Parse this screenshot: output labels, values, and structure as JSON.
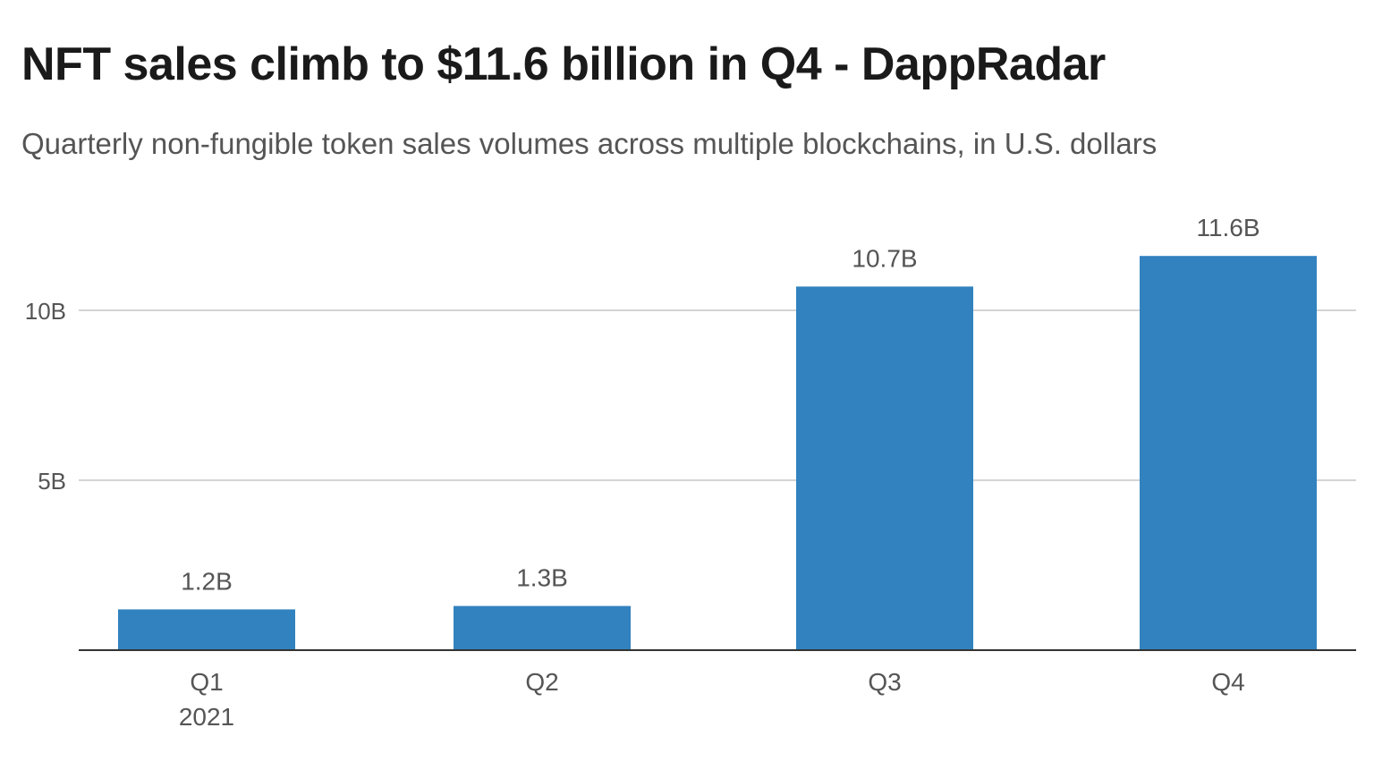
{
  "chart_data": {
    "type": "bar",
    "title": "NFT sales climb to $11.6 billion in Q4 - DappRadar",
    "subtitle": "Quarterly non-fungible token sales volumes across multiple blockchains, in U.S. dollars",
    "categories": [
      "Q1",
      "Q2",
      "Q3",
      "Q4"
    ],
    "category_sublabels": [
      "2021",
      "",
      "",
      ""
    ],
    "values": [
      1.2,
      1.3,
      10.7,
      11.6
    ],
    "value_labels": [
      "1.2B",
      "1.3B",
      "10.7B",
      "11.6B"
    ],
    "unit": "B",
    "ylim": [
      0,
      12
    ],
    "yticks": [
      5,
      10
    ],
    "ytick_labels": [
      "5B",
      "10B"
    ],
    "grid": true,
    "bar_color": "#3282bf",
    "grid_color": "#d4d4d4",
    "axis_color": "#333333"
  }
}
